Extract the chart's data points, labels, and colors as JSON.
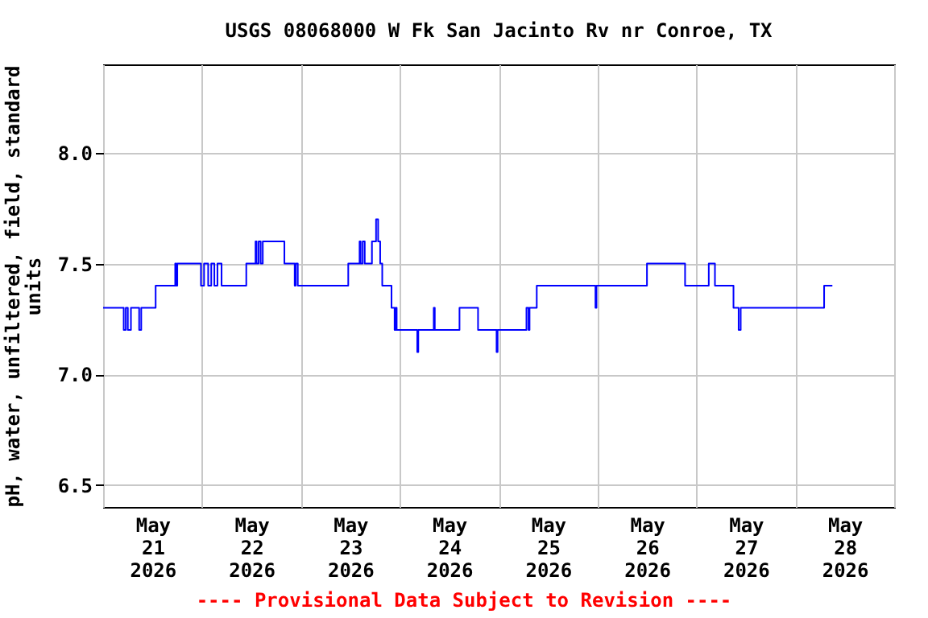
{
  "chart_data": {
    "type": "step",
    "title": "USGS 08068000 W Fk San Jacinto Rv nr Conroe, TX",
    "ylabel": "pH, water, unfiltered, field, standard units",
    "annotations": [
      "---- Provisional Data Subject to Revision ----"
    ],
    "x": [
      "2026-05-21T00:00",
      "2026-05-21T05:00",
      "2026-05-21T05:30",
      "2026-05-21T06:00",
      "2026-05-21T06:45",
      "2026-05-21T08:45",
      "2026-05-21T09:15",
      "2026-05-21T12:45",
      "2026-05-21T17:30",
      "2026-05-21T17:45",
      "2026-05-21T18:00",
      "2026-05-21T23:45",
      "2026-05-22T00:30",
      "2026-05-22T01:30",
      "2026-05-22T02:15",
      "2026-05-22T03:00",
      "2026-05-22T03:45",
      "2026-05-22T04:45",
      "2026-05-22T10:45",
      "2026-05-22T13:00",
      "2026-05-22T13:15",
      "2026-05-22T13:45",
      "2026-05-22T14:15",
      "2026-05-22T14:45",
      "2026-05-22T20:00",
      "2026-05-22T22:30",
      "2026-05-22T22:45",
      "2026-05-22T23:15",
      "2026-05-23T11:30",
      "2026-05-23T14:15",
      "2026-05-23T14:30",
      "2026-05-23T15:00",
      "2026-05-23T15:30",
      "2026-05-23T17:15",
      "2026-05-23T18:15",
      "2026-05-23T18:45",
      "2026-05-23T19:15",
      "2026-05-23T19:45",
      "2026-05-23T22:00",
      "2026-05-23T22:45",
      "2026-05-23T23:00",
      "2026-05-23T23:15",
      "2026-05-24T04:15",
      "2026-05-24T04:30",
      "2026-05-24T08:15",
      "2026-05-24T08:30",
      "2026-05-24T14:30",
      "2026-05-24T19:00",
      "2026-05-24T23:30",
      "2026-05-24T23:45",
      "2026-05-25T06:45",
      "2026-05-25T07:15",
      "2026-05-25T07:30",
      "2026-05-25T09:15",
      "2026-05-25T23:30",
      "2026-05-25T23:45",
      "2026-05-26T12:00",
      "2026-05-26T21:15",
      "2026-05-27T03:00",
      "2026-05-27T04:30",
      "2026-05-27T09:00",
      "2026-05-27T10:15",
      "2026-05-27T10:45",
      "2026-05-28T07:00",
      "2026-05-28T09:00"
    ],
    "series": [
      {
        "color": "#0000ff",
        "values": [
          7.3,
          7.2,
          7.3,
          7.2,
          7.3,
          7.2,
          7.3,
          7.4,
          7.5,
          7.4,
          7.5,
          7.4,
          7.5,
          7.4,
          7.5,
          7.4,
          7.5,
          7.4,
          7.5,
          7.6,
          7.5,
          7.6,
          7.5,
          7.6,
          7.5,
          7.4,
          7.5,
          7.4,
          7.5,
          7.6,
          7.5,
          7.6,
          7.5,
          7.6,
          7.7,
          7.6,
          7.5,
          7.4,
          7.3,
          7.2,
          7.3,
          7.2,
          7.1,
          7.2,
          7.3,
          7.2,
          7.3,
          7.2,
          7.1,
          7.2,
          7.3,
          7.2,
          7.3,
          7.4,
          7.3,
          7.4,
          7.5,
          7.4,
          7.5,
          7.4,
          7.3,
          7.2,
          7.3,
          7.4,
          7.4
        ]
      }
    ],
    "xlim": [
      "2026-05-21T00:00",
      "2026-05-29T00:00"
    ],
    "xticks": [
      {
        "value": "2026-05-21T00:00",
        "label": null
      },
      {
        "value": "2026-05-21T12:00",
        "label": "May 21 2026"
      },
      {
        "value": "2026-05-22T00:00",
        "label": null
      },
      {
        "value": "2026-05-22T12:00",
        "label": "May 22 2026"
      },
      {
        "value": "2026-05-23T00:00",
        "label": null
      },
      {
        "value": "2026-05-23T12:00",
        "label": "May 23 2026"
      },
      {
        "value": "2026-05-24T00:00",
        "label": null
      },
      {
        "value": "2026-05-24T12:00",
        "label": "May 24 2026"
      },
      {
        "value": "2026-05-25T00:00",
        "label": null
      },
      {
        "value": "2026-05-25T12:00",
        "label": "May 25 2026"
      },
      {
        "value": "2026-05-26T00:00",
        "label": null
      },
      {
        "value": "2026-05-26T12:00",
        "label": "May 26 2026"
      },
      {
        "value": "2026-05-27T00:00",
        "label": null
      },
      {
        "value": "2026-05-27T12:00",
        "label": "May 27 2026"
      },
      {
        "value": "2026-05-28T00:00",
        "label": null
      },
      {
        "value": "2026-05-28T12:00",
        "label": "May 28 2026"
      },
      {
        "value": "2026-05-29T00:00",
        "label": null
      }
    ],
    "ylim": [
      6.4,
      8.4
    ],
    "yticks": [
      6.5,
      {
        "value": 7,
        "label": "7.0"
      },
      7.5,
      {
        "value": 8,
        "label": "8.0"
      }
    ],
    "grid": true,
    "legend": false
  }
}
